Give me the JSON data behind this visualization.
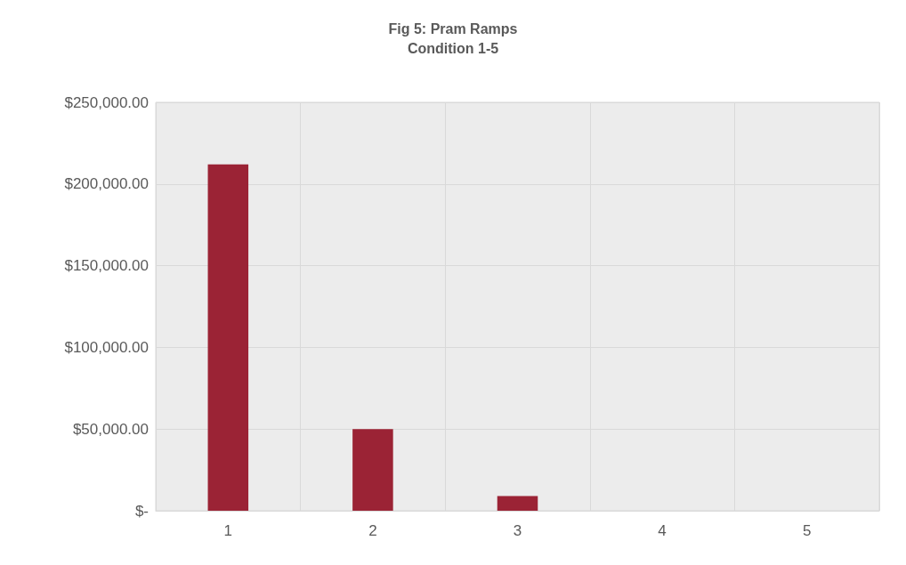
{
  "chart_data": {
    "type": "bar",
    "title": "Fig 5: Pram Ramps\nCondition 1-5",
    "categories": [
      "1",
      "2",
      "3",
      "4",
      "5"
    ],
    "values": [
      212000,
      50000,
      9000,
      0,
      0
    ],
    "color": "#9b2335",
    "ylim": [
      0,
      250000
    ],
    "yticks": [
      {
        "value": 0,
        "label": "$-"
      },
      {
        "value": 50000,
        "label": "$50,000.00"
      },
      {
        "value": 100000,
        "label": "$100,000.00"
      },
      {
        "value": 150000,
        "label": "$150,000.00"
      },
      {
        "value": 200000,
        "label": "$200,000.00"
      },
      {
        "value": 250000,
        "label": "$250,000.00"
      }
    ],
    "grid": true
  }
}
